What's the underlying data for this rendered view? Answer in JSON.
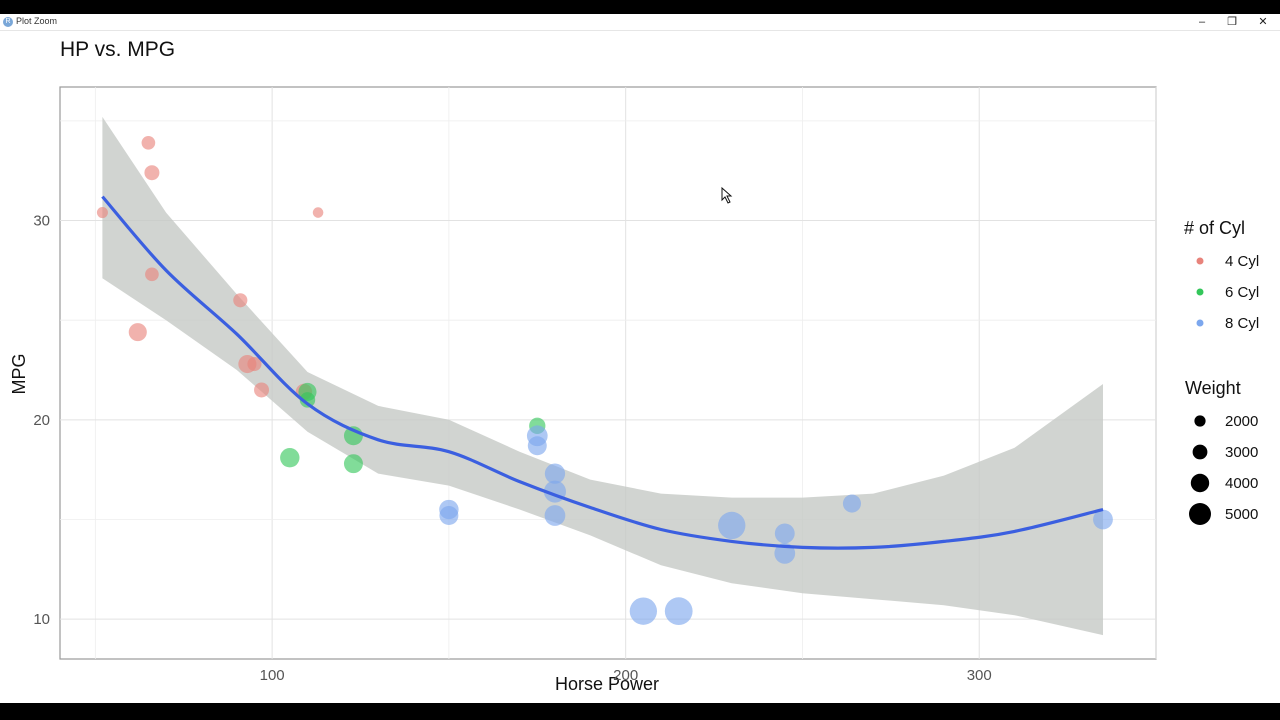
{
  "window": {
    "title": "Plot Zoom",
    "app_icon_glyph": "R",
    "controls": {
      "minimize": "–",
      "maximize": "❐",
      "close": "✕"
    }
  },
  "chart_data": {
    "type": "scatter",
    "title": "HP vs. MPG",
    "xlabel": "Horse Power",
    "ylabel": "MPG",
    "xlim": [
      40,
      350
    ],
    "ylim": [
      8,
      36.7
    ],
    "x_ticks": [
      100,
      200,
      300
    ],
    "y_ticks": [
      10,
      20,
      30
    ],
    "grid": true,
    "legend_position": "right",
    "color_legend": {
      "title": "# of Cyl",
      "entries": [
        {
          "label": "4 Cyl",
          "color": "#E8837B"
        },
        {
          "label": "6 Cyl",
          "color": "#33C65A"
        },
        {
          "label": "8 Cyl",
          "color": "#7CA7EE"
        }
      ]
    },
    "size_legend": {
      "title": "Weight",
      "entries": [
        {
          "label": "2000",
          "value": 2000
        },
        {
          "label": "3000",
          "value": 3000
        },
        {
          "label": "4000",
          "value": 4000
        },
        {
          "label": "5000",
          "value": 5000
        }
      ]
    },
    "series": [
      {
        "name": "4 Cyl",
        "color": "#E8837B",
        "points": [
          {
            "x": 52,
            "y": 30.4,
            "wt": 1.6
          },
          {
            "x": 65,
            "y": 33.9,
            "wt": 2.2
          },
          {
            "x": 66,
            "y": 32.4,
            "wt": 2.5
          },
          {
            "x": 66,
            "y": 27.3,
            "wt": 2.2
          },
          {
            "x": 62,
            "y": 24.4,
            "wt": 3.2
          },
          {
            "x": 91,
            "y": 26.0,
            "wt": 2.3
          },
          {
            "x": 93,
            "y": 22.8,
            "wt": 3.2
          },
          {
            "x": 95,
            "y": 22.8,
            "wt": 2.3
          },
          {
            "x": 97,
            "y": 21.5,
            "wt": 2.5
          },
          {
            "x": 109,
            "y": 21.4,
            "wt": 2.8
          },
          {
            "x": 113,
            "y": 30.4,
            "wt": 1.5
          }
        ]
      },
      {
        "name": "6 Cyl",
        "color": "#33C65A",
        "points": [
          {
            "x": 110,
            "y": 21.0,
            "wt": 2.6
          },
          {
            "x": 110,
            "y": 21.4,
            "wt": 3.2
          },
          {
            "x": 105,
            "y": 18.1,
            "wt": 3.5
          },
          {
            "x": 123,
            "y": 19.2,
            "wt": 3.4
          },
          {
            "x": 123,
            "y": 17.8,
            "wt": 3.4
          },
          {
            "x": 175,
            "y": 19.7,
            "wt": 2.8
          }
        ]
      },
      {
        "name": "8 Cyl",
        "color": "#7CA7EE",
        "points": [
          {
            "x": 175,
            "y": 18.7,
            "wt": 3.4
          },
          {
            "x": 175,
            "y": 19.2,
            "wt": 3.8
          },
          {
            "x": 180,
            "y": 17.3,
            "wt": 3.7
          },
          {
            "x": 180,
            "y": 16.4,
            "wt": 4.1
          },
          {
            "x": 180,
            "y": 15.2,
            "wt": 3.8
          },
          {
            "x": 150,
            "y": 15.5,
            "wt": 3.5
          },
          {
            "x": 150,
            "y": 15.2,
            "wt": 3.4
          },
          {
            "x": 205,
            "y": 10.4,
            "wt": 5.3
          },
          {
            "x": 215,
            "y": 10.4,
            "wt": 5.4
          },
          {
            "x": 230,
            "y": 14.7,
            "wt": 5.3
          },
          {
            "x": 245,
            "y": 14.3,
            "wt": 3.6
          },
          {
            "x": 245,
            "y": 13.3,
            "wt": 3.8
          },
          {
            "x": 264,
            "y": 15.8,
            "wt": 3.2
          },
          {
            "x": 335,
            "y": 15.0,
            "wt": 3.6
          }
        ]
      }
    ],
    "smooth": {
      "color": "#3B5FE0",
      "band_color": "#C5C9C5",
      "points": [
        {
          "x": 52,
          "y": 31.2,
          "lo": 27.1,
          "hi": 35.2
        },
        {
          "x": 70,
          "y": 27.5,
          "lo": 25.0,
          "hi": 30.4
        },
        {
          "x": 90,
          "y": 24.3,
          "lo": 22.5,
          "hi": 26.3
        },
        {
          "x": 110,
          "y": 20.8,
          "lo": 19.4,
          "hi": 22.4
        },
        {
          "x": 130,
          "y": 19.0,
          "lo": 17.3,
          "hi": 20.7
        },
        {
          "x": 150,
          "y": 18.4,
          "lo": 16.7,
          "hi": 20.0
        },
        {
          "x": 170,
          "y": 16.9,
          "lo": 15.5,
          "hi": 18.4
        },
        {
          "x": 190,
          "y": 15.6,
          "lo": 14.2,
          "hi": 17.0
        },
        {
          "x": 210,
          "y": 14.5,
          "lo": 12.7,
          "hi": 16.3
        },
        {
          "x": 230,
          "y": 13.9,
          "lo": 11.8,
          "hi": 16.1
        },
        {
          "x": 250,
          "y": 13.6,
          "lo": 11.3,
          "hi": 16.1
        },
        {
          "x": 270,
          "y": 13.6,
          "lo": 11.0,
          "hi": 16.3
        },
        {
          "x": 290,
          "y": 13.9,
          "lo": 10.7,
          "hi": 17.2
        },
        {
          "x": 310,
          "y": 14.4,
          "lo": 10.2,
          "hi": 18.6
        },
        {
          "x": 335,
          "y": 15.5,
          "lo": 9.2,
          "hi": 21.8
        }
      ]
    }
  }
}
